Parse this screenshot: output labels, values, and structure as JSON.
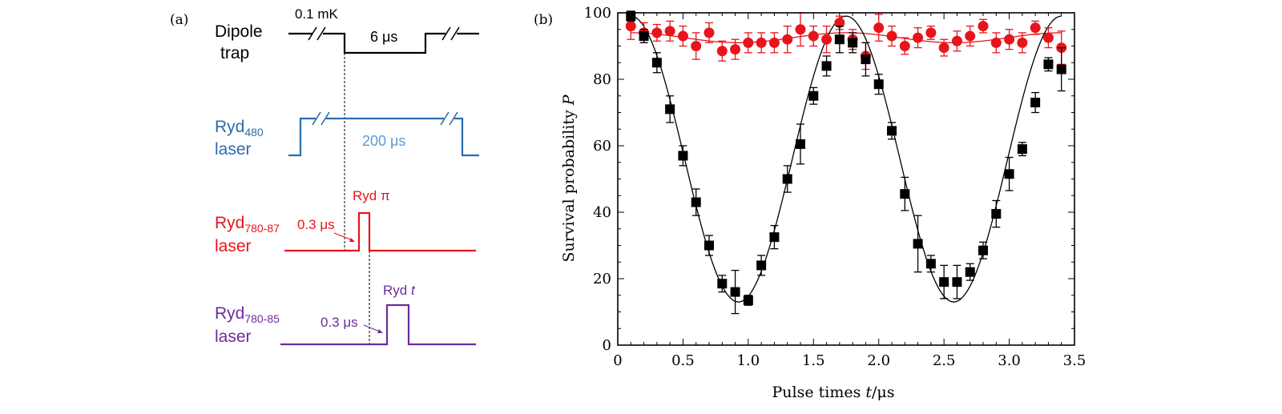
{
  "panel_a": {
    "label": "(a)",
    "dipole": {
      "name_line1": "Dipole",
      "name_line2": "trap",
      "depth_label": "0.1 mK",
      "duration_label": "6 μs",
      "color": "#000000"
    },
    "ryd480": {
      "name_main": "Ryd",
      "name_sub": "480",
      "name_line2": "laser",
      "duration_label": "200 μs",
      "color": "#2b6cad",
      "label_color": "#5b9bd5"
    },
    "ryd780_87": {
      "name_main": "Ryd",
      "name_sub": "780-87",
      "name_line2": "laser",
      "pulse_label": "Ryd π",
      "duration_label": "0.3 μs",
      "color": "#e8141c"
    },
    "ryd780_85": {
      "name_main": "Ryd",
      "name_sub": "780-85",
      "name_line2": "laser",
      "pulse_label_main": "Ryd ",
      "pulse_label_var": "t",
      "duration_label": "0.3 μs",
      "color": "#6a2c9c"
    }
  },
  "chart_data": {
    "type": "scatter",
    "panel_label": "(b)",
    "xlabel_main": "Pulse times ",
    "xlabel_var": "t",
    "xlabel_unit": "/μs",
    "ylabel_main": "Survival probability ",
    "ylabel_var": "P",
    "xlim": [
      0,
      3.5
    ],
    "ylim": [
      0,
      100
    ],
    "x_ticks": [
      "0",
      "0.5",
      "1.0",
      "1.5",
      "2.0",
      "2.5",
      "3.0",
      "3.5"
    ],
    "y_ticks": [
      "0",
      "20",
      "40",
      "60",
      "80",
      "100"
    ],
    "series": [
      {
        "name": "red circles",
        "marker": "circle",
        "color": "#e8141c",
        "x": [
          0.1,
          0.2,
          0.3,
          0.4,
          0.5,
          0.6,
          0.7,
          0.8,
          0.9,
          1.0,
          1.1,
          1.2,
          1.3,
          1.4,
          1.5,
          1.6,
          1.7,
          1.8,
          1.9,
          2.0,
          2.1,
          2.2,
          2.3,
          2.4,
          2.5,
          2.6,
          2.7,
          2.8,
          2.9,
          3.0,
          3.1,
          3.2,
          3.3,
          3.4
        ],
        "y": [
          96,
          94,
          94,
          94.5,
          93,
          90,
          94,
          88.5,
          89,
          91,
          91,
          91,
          92,
          95,
          93,
          92,
          97,
          92,
          87,
          95.5,
          93,
          90,
          92.5,
          94,
          89.5,
          91.5,
          93,
          96,
          91,
          92,
          91,
          95.5,
          92.5,
          89.5
        ],
        "err": [
          4,
          3,
          2.5,
          3,
          3,
          4,
          3,
          3,
          3,
          3,
          3,
          3,
          4,
          5,
          3,
          4,
          2,
          3,
          4,
          4,
          3,
          2.5,
          3,
          2,
          2.5,
          3,
          3,
          2,
          3,
          3,
          3,
          2,
          3,
          5
        ],
        "fit_mean": 92.5,
        "fit_amp": 1.5
      },
      {
        "name": "black squares",
        "marker": "square",
        "color": "#000000",
        "x": [
          0.1,
          0.2,
          0.3,
          0.4,
          0.5,
          0.6,
          0.7,
          0.8,
          0.9,
          1.0,
          1.1,
          1.2,
          1.3,
          1.4,
          1.5,
          1.6,
          1.7,
          1.8,
          1.9,
          2.0,
          2.1,
          2.2,
          2.3,
          2.4,
          2.5,
          2.6,
          2.7,
          2.8,
          2.9,
          3.0,
          3.1,
          3.2,
          3.3,
          3.4
        ],
        "y": [
          99,
          93,
          85,
          71,
          57,
          43,
          30,
          18.5,
          16,
          13.5,
          24,
          32.5,
          50,
          60.5,
          75,
          84,
          92,
          91,
          86,
          78.5,
          64.5,
          45.5,
          30.5,
          24.5,
          19,
          19,
          22,
          28.5,
          39.5,
          51.5,
          59,
          73,
          84.5,
          83
        ],
        "err": [
          1.5,
          2,
          3,
          4,
          3,
          4,
          3,
          2.5,
          6.5,
          1.5,
          3,
          3.5,
          4,
          6,
          2.5,
          3,
          4,
          3,
          5,
          3,
          2.5,
          5,
          8.5,
          2.5,
          5,
          5,
          2.5,
          2.5,
          4,
          5,
          2,
          3,
          2,
          6.5
        ],
        "fit_mean": 56,
        "fit_amp": 43,
        "fit_period": 1.65,
        "fit_phase_t0": 0.1
      }
    ]
  }
}
